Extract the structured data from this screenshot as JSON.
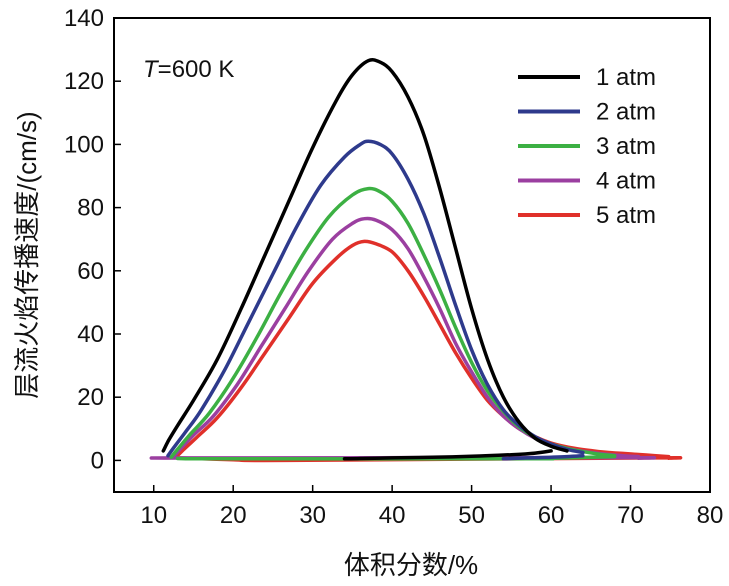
{
  "chart_data": {
    "type": "line",
    "title": "",
    "annotation": {
      "var": "T",
      "rest": "=600 K"
    },
    "xlabel": "体积分数/%",
    "ylabel": "层流火焰传播速度/(cm/s)",
    "xlim": [
      5,
      80
    ],
    "ylim": [
      -10,
      140
    ],
    "x_ticks": [
      10,
      20,
      30,
      40,
      50,
      60,
      70,
      80
    ],
    "y_ticks": [
      0,
      20,
      40,
      60,
      80,
      100,
      120,
      140
    ],
    "grid": false,
    "legend_position": "top-right",
    "series": [
      {
        "name": "1 atm",
        "color": "#000000",
        "upper": [
          [
            11.2,
            3
          ],
          [
            11.8,
            6
          ],
          [
            13,
            11
          ],
          [
            15,
            19
          ],
          [
            18,
            32
          ],
          [
            21,
            48
          ],
          [
            24,
            65
          ],
          [
            27,
            82
          ],
          [
            30,
            99
          ],
          [
            33,
            114
          ],
          [
            35,
            122
          ],
          [
            37,
            126.5
          ],
          [
            38.5,
            126
          ],
          [
            40,
            123
          ],
          [
            42,
            115
          ],
          [
            44,
            103
          ],
          [
            46,
            86
          ],
          [
            48,
            67
          ],
          [
            50,
            48
          ],
          [
            52,
            32
          ],
          [
            54,
            20
          ],
          [
            56,
            12
          ],
          [
            58,
            7
          ],
          [
            60,
            4.5
          ],
          [
            62,
            3
          ]
        ],
        "lower": [
          [
            60,
            3
          ],
          [
            58,
            2.3
          ],
          [
            55,
            1.8
          ],
          [
            50,
            1.3
          ],
          [
            45,
            1
          ],
          [
            40,
            0.8
          ],
          [
            36,
            0.6
          ],
          [
            34,
            0.5
          ]
        ]
      },
      {
        "name": "2 atm",
        "color": "#2e3a8c",
        "upper": [
          [
            11.8,
            1.5
          ],
          [
            12.5,
            4
          ],
          [
            14,
            9
          ],
          [
            16,
            16
          ],
          [
            19,
            29
          ],
          [
            22,
            44
          ],
          [
            25,
            59
          ],
          [
            28,
            74
          ],
          [
            31,
            87
          ],
          [
            34,
            96
          ],
          [
            36,
            100
          ],
          [
            37,
            101
          ],
          [
            38.5,
            100
          ],
          [
            40,
            97
          ],
          [
            42,
            89
          ],
          [
            44,
            78
          ],
          [
            46,
            64
          ],
          [
            48,
            49
          ],
          [
            50,
            35
          ],
          [
            52,
            24
          ],
          [
            54,
            16
          ],
          [
            56,
            11
          ],
          [
            58,
            7.5
          ],
          [
            60,
            5.2
          ],
          [
            62,
            3.5
          ],
          [
            64,
            2.5
          ]
        ],
        "lower": [
          [
            64,
            1.5
          ],
          [
            62,
            1.2
          ],
          [
            60,
            1
          ],
          [
            57,
            0.8
          ],
          [
            54,
            0.5
          ]
        ]
      },
      {
        "name": "3 atm",
        "color": "#3cb043",
        "upper": [
          [
            12.2,
            1
          ],
          [
            13,
            3.5
          ],
          [
            14.5,
            8
          ],
          [
            17,
            15
          ],
          [
            20,
            26
          ],
          [
            23,
            39
          ],
          [
            26,
            53
          ],
          [
            29,
            66
          ],
          [
            32,
            77
          ],
          [
            35,
            84
          ],
          [
            37,
            86
          ],
          [
            38.5,
            85
          ],
          [
            40,
            82
          ],
          [
            42,
            75
          ],
          [
            44,
            65
          ],
          [
            46,
            54
          ],
          [
            48,
            42
          ],
          [
            50,
            31
          ],
          [
            52,
            22
          ],
          [
            54,
            15.5
          ],
          [
            56,
            10.5
          ],
          [
            58,
            7.3
          ],
          [
            60,
            5.2
          ],
          [
            62,
            3.8
          ],
          [
            64,
            2.8
          ],
          [
            66,
            2
          ],
          [
            68,
            1.5
          ]
        ],
        "lower": [
          [
            68,
            1.2
          ],
          [
            65,
            1
          ],
          [
            62,
            0.8
          ],
          [
            59,
            0.6
          ],
          [
            57,
            0.5
          ],
          [
            20,
            0.5
          ],
          [
            13,
            0.6
          ]
        ]
      },
      {
        "name": "4 atm",
        "color": "#9b3fa0",
        "upper": [
          [
            12.5,
            1
          ],
          [
            13.3,
            3.5
          ],
          [
            15,
            8
          ],
          [
            17.5,
            14
          ],
          [
            20.5,
            24
          ],
          [
            23.5,
            36
          ],
          [
            26.5,
            48
          ],
          [
            29.5,
            60
          ],
          [
            32.5,
            70
          ],
          [
            35,
            75
          ],
          [
            36.5,
            76.5
          ],
          [
            38,
            76
          ],
          [
            40,
            73
          ],
          [
            42,
            67
          ],
          [
            44,
            58
          ],
          [
            46,
            48
          ],
          [
            48,
            37
          ],
          [
            50,
            28
          ],
          [
            52,
            20
          ],
          [
            54,
            14
          ],
          [
            56,
            10
          ],
          [
            58,
            7
          ],
          [
            60,
            5
          ],
          [
            63,
            3.3
          ],
          [
            66,
            2.2
          ],
          [
            69,
            1.5
          ],
          [
            71,
            1.2
          ]
        ],
        "lower": [
          [
            71,
            0.7
          ],
          [
            68,
            0.9
          ],
          [
            14,
            0.8
          ],
          [
            13,
            0.7
          ]
        ]
      },
      {
        "name": "5 atm",
        "color": "#e0302a",
        "upper": [
          [
            12.8,
            1
          ],
          [
            13.8,
            3.5
          ],
          [
            15.5,
            7.5
          ],
          [
            18,
            13.5
          ],
          [
            21,
            23
          ],
          [
            24,
            34
          ],
          [
            27,
            45
          ],
          [
            30,
            56
          ],
          [
            33,
            64
          ],
          [
            35,
            68
          ],
          [
            36.5,
            69.3
          ],
          [
            38,
            68.5
          ],
          [
            40,
            66
          ],
          [
            42,
            60
          ],
          [
            44,
            52
          ],
          [
            46,
            43
          ],
          [
            48,
            34
          ],
          [
            50,
            26
          ],
          [
            52,
            19
          ],
          [
            54,
            14
          ],
          [
            56,
            10
          ],
          [
            58,
            7.5
          ],
          [
            60,
            5.5
          ],
          [
            63,
            3.8
          ],
          [
            66,
            2.8
          ],
          [
            69,
            2.2
          ],
          [
            72,
            1.7
          ],
          [
            74.8,
            1.2
          ]
        ],
        "lower": [
          [
            74.8,
            0.7
          ],
          [
            72,
            0.8
          ],
          [
            27,
            0
          ],
          [
            20,
            0.2
          ],
          [
            13,
            0.8
          ]
        ]
      }
    ]
  }
}
